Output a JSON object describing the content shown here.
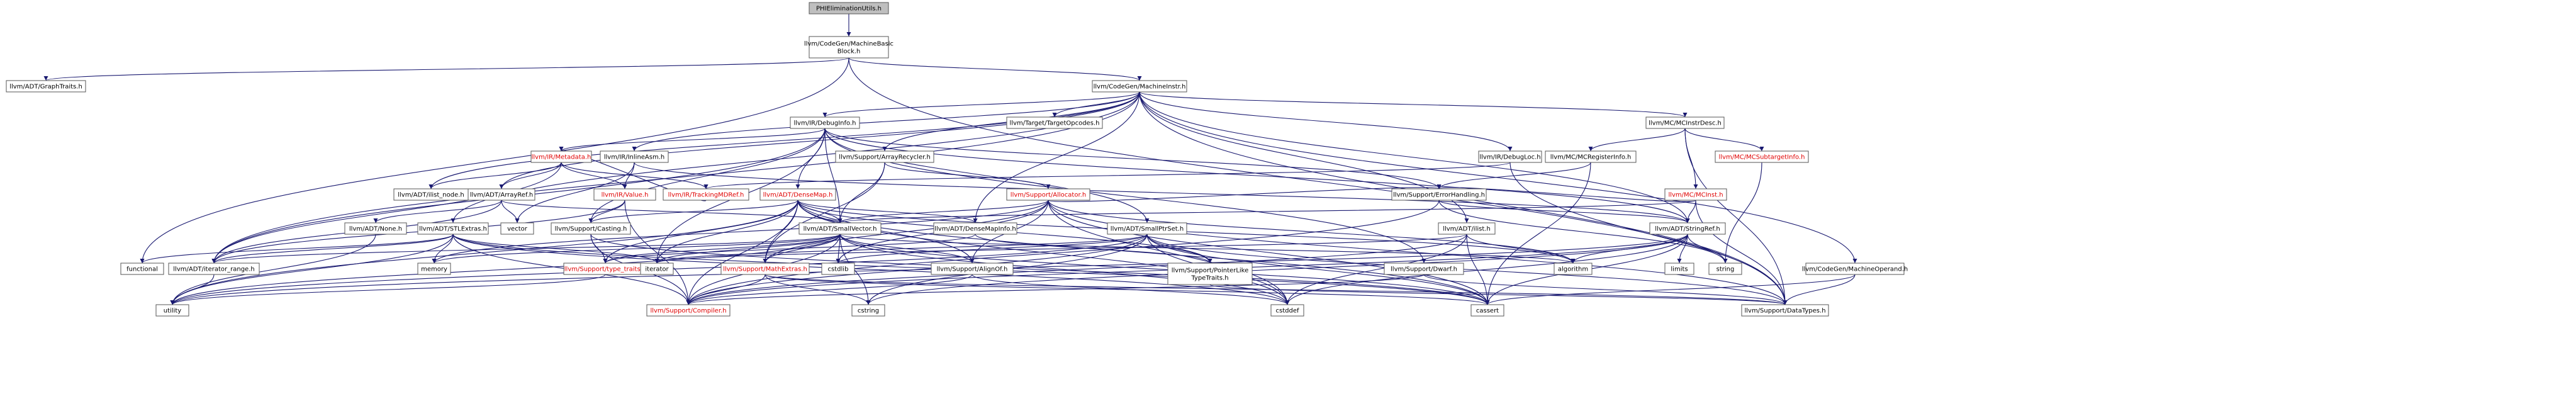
{
  "colors": {
    "normal_fill": "#ffffff",
    "root_fill": "#bfbfbf",
    "border": "#555555",
    "text": "#000000",
    "red_text": "#e00000",
    "arrow": "#191970"
  },
  "nodes": [
    {
      "id": "root",
      "lines": [
        "PHIEliminationUtils.h"
      ],
      "style": "root"
    },
    {
      "id": "mbb",
      "lines": [
        "llvm/CodeGen/MachineBasic",
        "Block.h"
      ]
    },
    {
      "id": "graphtraits",
      "lines": [
        "llvm/ADT/GraphTraits.h"
      ]
    },
    {
      "id": "machineinstr",
      "lines": [
        "llvm/CodeGen/MachineInstr.h"
      ]
    },
    {
      "id": "debuginfo",
      "lines": [
        "llvm/IR/DebugInfo.h"
      ]
    },
    {
      "id": "targetopcodes",
      "lines": [
        "llvm/Target/TargetOpcodes.h"
      ]
    },
    {
      "id": "mcinstrdesc",
      "lines": [
        "llvm/MC/MCInstrDesc.h"
      ]
    },
    {
      "id": "metadata",
      "lines": [
        "llvm/IR/Metadata.h"
      ],
      "style": "red"
    },
    {
      "id": "inlineasm",
      "lines": [
        "llvm/IR/InlineAsm.h"
      ]
    },
    {
      "id": "arrayrecycler",
      "lines": [
        "llvm/Support/ArrayRecycler.h"
      ]
    },
    {
      "id": "debugloc",
      "lines": [
        "llvm/IR/DebugLoc.h"
      ]
    },
    {
      "id": "mcregisterinfo",
      "lines": [
        "llvm/MC/MCRegisterInfo.h"
      ]
    },
    {
      "id": "mcsubtargetinfo",
      "lines": [
        "llvm/MC/MCSubtargetInfo.h"
      ],
      "style": "red"
    },
    {
      "id": "ilistnode",
      "lines": [
        "llvm/ADT/ilist_node.h"
      ]
    },
    {
      "id": "arrayref",
      "lines": [
        "llvm/ADT/ArrayRef.h"
      ]
    },
    {
      "id": "value",
      "lines": [
        "llvm/IR/Value.h"
      ],
      "style": "red"
    },
    {
      "id": "trackingmdref",
      "lines": [
        "llvm/IR/TrackingMDRef.h"
      ],
      "style": "red"
    },
    {
      "id": "densemap",
      "lines": [
        "llvm/ADT/DenseMap.h"
      ],
      "style": "red"
    },
    {
      "id": "allocator",
      "lines": [
        "llvm/Support/Allocator.h"
      ],
      "style": "red"
    },
    {
      "id": "errorhandling",
      "lines": [
        "llvm/Support/ErrorHandling.h"
      ]
    },
    {
      "id": "mcinst",
      "lines": [
        "llvm/MC/MCInst.h"
      ],
      "style": "red"
    },
    {
      "id": "none",
      "lines": [
        "llvm/ADT/None.h"
      ]
    },
    {
      "id": "stlextras",
      "lines": [
        "llvm/ADT/STLExtras.h"
      ]
    },
    {
      "id": "vector",
      "lines": [
        "vector"
      ],
      "style": "plain"
    },
    {
      "id": "casting",
      "lines": [
        "llvm/Support/Casting.h"
      ]
    },
    {
      "id": "smallvector",
      "lines": [
        "llvm/ADT/SmallVector.h"
      ]
    },
    {
      "id": "densemapinfo",
      "lines": [
        "llvm/ADT/DenseMapInfo.h"
      ]
    },
    {
      "id": "smallptrset",
      "lines": [
        "llvm/ADT/SmallPtrSet.h"
      ]
    },
    {
      "id": "ilist",
      "lines": [
        "llvm/ADT/ilist.h"
      ]
    },
    {
      "id": "stringref",
      "lines": [
        "llvm/ADT/StringRef.h"
      ]
    },
    {
      "id": "functional",
      "lines": [
        "functional"
      ],
      "style": "plain"
    },
    {
      "id": "iteratorrange",
      "lines": [
        "llvm/ADT/iterator_range.h"
      ]
    },
    {
      "id": "memory",
      "lines": [
        "memory"
      ],
      "style": "plain"
    },
    {
      "id": "typetraits",
      "lines": [
        "llvm/Support/type_traits.h"
      ],
      "style": "red"
    },
    {
      "id": "iterator",
      "lines": [
        "iterator"
      ],
      "style": "plain"
    },
    {
      "id": "mathextras",
      "lines": [
        "llvm/Support/MathExtras.h"
      ],
      "style": "red"
    },
    {
      "id": "cstdlib",
      "lines": [
        "cstdlib"
      ],
      "style": "plain"
    },
    {
      "id": "alignof",
      "lines": [
        "llvm/Support/AlignOf.h"
      ]
    },
    {
      "id": "pointerlike",
      "lines": [
        "llvm/Support/PointerLike",
        "TypeTraits.h"
      ]
    },
    {
      "id": "algorithm",
      "lines": [
        "algorithm"
      ],
      "style": "plain"
    },
    {
      "id": "dwarf",
      "lines": [
        "llvm/Support/Dwarf.h"
      ]
    },
    {
      "id": "limits",
      "lines": [
        "limits"
      ],
      "style": "plain"
    },
    {
      "id": "string",
      "lines": [
        "string"
      ],
      "style": "plain"
    },
    {
      "id": "machineoperand",
      "lines": [
        "llvm/CodeGen/MachineOperand.h"
      ]
    },
    {
      "id": "utility",
      "lines": [
        "utility"
      ],
      "style": "plain"
    },
    {
      "id": "compiler",
      "lines": [
        "llvm/Support/Compiler.h"
      ],
      "style": "red"
    },
    {
      "id": "cstring",
      "lines": [
        "cstring"
      ],
      "style": "plain"
    },
    {
      "id": "cstddef",
      "lines": [
        "cstddef"
      ],
      "style": "plain"
    },
    {
      "id": "cassert",
      "lines": [
        "cassert"
      ],
      "style": "plain"
    },
    {
      "id": "datatypes",
      "lines": [
        "llvm/Support/DataTypes.h"
      ]
    }
  ],
  "edges": [
    [
      "root",
      "mbb"
    ],
    [
      "mbb",
      "graphtraits"
    ],
    [
      "mbb",
      "machineinstr"
    ],
    [
      "mbb",
      "functional"
    ],
    [
      "mbb",
      "datatypes"
    ],
    [
      "machineinstr",
      "debuginfo"
    ],
    [
      "machineinstr",
      "targetopcodes"
    ],
    [
      "machineinstr",
      "mcinstrdesc"
    ],
    [
      "machineinstr",
      "inlineasm"
    ],
    [
      "machineinstr",
      "arrayrecycler"
    ],
    [
      "machineinstr",
      "debugloc"
    ],
    [
      "machineinstr",
      "ilistnode"
    ],
    [
      "machineinstr",
      "arrayref"
    ],
    [
      "machineinstr",
      "densemapinfo"
    ],
    [
      "machineinstr",
      "ilist"
    ],
    [
      "machineinstr",
      "stringref"
    ],
    [
      "machineinstr",
      "iteratorrange"
    ],
    [
      "machineinstr",
      "stlextras"
    ],
    [
      "machineinstr",
      "machineoperand"
    ],
    [
      "machineinstr",
      "datatypes"
    ],
    [
      "debuginfo",
      "metadata"
    ],
    [
      "debuginfo",
      "densemap"
    ],
    [
      "debuginfo",
      "smallptrset"
    ],
    [
      "debuginfo",
      "smallvector"
    ],
    [
      "debuginfo",
      "stringref"
    ],
    [
      "debuginfo",
      "casting"
    ],
    [
      "debuginfo",
      "iteratorrange"
    ],
    [
      "debuginfo",
      "dwarf"
    ],
    [
      "debuginfo",
      "errorhandling"
    ],
    [
      "debuginfo",
      "iterator"
    ],
    [
      "metadata",
      "ilistnode"
    ],
    [
      "metadata",
      "arrayref"
    ],
    [
      "metadata",
      "value"
    ],
    [
      "metadata",
      "trackingmdref"
    ],
    [
      "metadata",
      "iteratorrange"
    ],
    [
      "inlineasm",
      "value"
    ],
    [
      "inlineasm",
      "stringref"
    ],
    [
      "inlineasm",
      "vector"
    ],
    [
      "arrayrecycler",
      "smallvector"
    ],
    [
      "arrayrecycler",
      "allocator"
    ],
    [
      "arrayrecycler",
      "mathextras"
    ],
    [
      "debugloc",
      "trackingmdref"
    ],
    [
      "debugloc",
      "datatypes"
    ],
    [
      "mcinstrdesc",
      "mcregisterinfo"
    ],
    [
      "mcinstrdesc",
      "mcsubtargetinfo"
    ],
    [
      "mcinstrdesc",
      "mcinst"
    ],
    [
      "mcinstrdesc",
      "datatypes"
    ],
    [
      "mcregisterinfo",
      "errorhandling"
    ],
    [
      "mcregisterinfo",
      "cassert"
    ],
    [
      "mcsubtargetinfo",
      "string"
    ],
    [
      "mcinst",
      "smallvector"
    ],
    [
      "mcinst",
      "stringref"
    ],
    [
      "mcinst",
      "errorhandling"
    ],
    [
      "mcinst",
      "datatypes"
    ],
    [
      "arrayref",
      "none"
    ],
    [
      "arrayref",
      "smallvector"
    ],
    [
      "arrayref",
      "vector"
    ],
    [
      "arrayref",
      "iteratorrange"
    ],
    [
      "value",
      "casting"
    ],
    [
      "value",
      "compiler"
    ],
    [
      "value",
      "iteratorrange"
    ],
    [
      "trackingmdref",
      "metadata"
    ],
    [
      "densemap",
      "densemapinfo"
    ],
    [
      "densemap",
      "epochtracker"
    ],
    [
      "densemap",
      "alignof"
    ],
    [
      "densemap",
      "compiler"
    ],
    [
      "densemap",
      "mathextras"
    ],
    [
      "densemap",
      "pointerlike"
    ],
    [
      "densemap",
      "typetraits"
    ],
    [
      "densemap",
      "algorithm"
    ],
    [
      "densemap",
      "cassert"
    ],
    [
      "densemap",
      "cstddef"
    ],
    [
      "densemap",
      "iterator"
    ],
    [
      "densemap",
      "utility"
    ],
    [
      "densemap",
      "casting"
    ],
    [
      "densemap",
      "smallvector"
    ],
    [
      "allocator",
      "smallvector"
    ],
    [
      "allocator",
      "alignof"
    ],
    [
      "allocator",
      "datatypes"
    ],
    [
      "allocator",
      "errorhandling"
    ],
    [
      "allocator",
      "mathextras"
    ],
    [
      "allocator",
      "memory"
    ],
    [
      "allocator",
      "algorithm"
    ],
    [
      "allocator",
      "cassert"
    ],
    [
      "allocator",
      "cstddef"
    ],
    [
      "allocator",
      "cstdlib"
    ],
    [
      "errorhandling",
      "stringref"
    ],
    [
      "errorhandling",
      "compiler"
    ],
    [
      "errorhandling",
      "string"
    ],
    [
      "none",
      "utility"
    ],
    [
      "stlextras",
      "compiler"
    ],
    [
      "stlextras",
      "functional"
    ],
    [
      "stlextras",
      "iterator"
    ],
    [
      "stlextras",
      "memory"
    ],
    [
      "stlextras",
      "utility"
    ],
    [
      "stlextras",
      "iteratorrange"
    ],
    [
      "stlextras",
      "cassert"
    ],
    [
      "stlextras",
      "cstddef"
    ],
    [
      "casting",
      "compiler"
    ],
    [
      "casting",
      "typetraits"
    ],
    [
      "casting",
      "cassert"
    ],
    [
      "smallvector",
      "alignof"
    ],
    [
      "smallvector",
      "compiler"
    ],
    [
      "smallvector",
      "mathextras"
    ],
    [
      "smallvector",
      "typetraits"
    ],
    [
      "smallvector",
      "iteratorrange"
    ],
    [
      "smallvector",
      "algorithm"
    ],
    [
      "smallvector",
      "cassert"
    ],
    [
      "smallvector",
      "cstddef"
    ],
    [
      "smallvector",
      "cstdlib"
    ],
    [
      "smallvector",
      "cstring"
    ],
    [
      "smallvector",
      "iterator"
    ],
    [
      "smallvector",
      "memory"
    ],
    [
      "smallvector",
      "utility"
    ],
    [
      "densemapinfo",
      "pointerlike"
    ],
    [
      "densemapinfo",
      "typetraits"
    ],
    [
      "smallptrset",
      "compiler"
    ],
    [
      "smallptrset",
      "datatypes"
    ],
    [
      "smallptrset",
      "pointerlike"
    ],
    [
      "smallptrset",
      "cassert"
    ],
    [
      "smallptrset",
      "cstddef"
    ],
    [
      "smallptrset",
      "cstring"
    ],
    [
      "smallptrset",
      "cstdlib"
    ],
    [
      "smallptrset",
      "iterator"
    ],
    [
      "smallptrset",
      "utility"
    ],
    [
      "ilist",
      "compiler"
    ],
    [
      "ilist",
      "algorithm"
    ],
    [
      "ilist",
      "cassert"
    ],
    [
      "ilist",
      "cstddef"
    ],
    [
      "ilist",
      "iterator"
    ],
    [
      "stringref",
      "compiler"
    ],
    [
      "stringref",
      "algorithm"
    ],
    [
      "stringref",
      "cassert"
    ],
    [
      "stringref",
      "cstddef"
    ],
    [
      "stringref",
      "cstring"
    ],
    [
      "stringref",
      "limits"
    ],
    [
      "stringref",
      "string"
    ],
    [
      "stringref",
      "utility"
    ],
    [
      "iteratorrange",
      "utility"
    ],
    [
      "typetraits",
      "utility"
    ],
    [
      "mathextras",
      "compiler"
    ],
    [
      "mathextras",
      "datatypes"
    ],
    [
      "mathextras",
      "cassert"
    ],
    [
      "mathextras",
      "cstring"
    ],
    [
      "alignof",
      "compiler"
    ],
    [
      "alignof",
      "cstddef"
    ],
    [
      "pointerlike",
      "datatypes"
    ],
    [
      "dwarf",
      "compiler"
    ],
    [
      "dwarf",
      "datatypes"
    ],
    [
      "machineoperand",
      "datatypes"
    ],
    [
      "machineoperand",
      "cassert"
    ]
  ]
}
